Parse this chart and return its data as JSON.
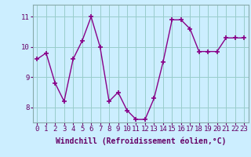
{
  "x": [
    0,
    1,
    2,
    3,
    4,
    5,
    6,
    7,
    8,
    9,
    10,
    11,
    12,
    13,
    14,
    15,
    16,
    17,
    18,
    19,
    20,
    21,
    22,
    23
  ],
  "y": [
    9.6,
    9.8,
    8.8,
    8.2,
    9.6,
    10.2,
    11.0,
    10.0,
    8.2,
    8.5,
    7.9,
    7.6,
    7.6,
    8.3,
    9.5,
    10.9,
    10.9,
    10.6,
    9.85,
    9.85,
    9.85,
    10.3,
    10.3,
    10.3
  ],
  "line_color": "#880088",
  "marker": "+",
  "marker_size": 5,
  "marker_lw": 1.2,
  "bg_color": "#cceeff",
  "grid_color": "#99cccc",
  "xlabel": "Windchill (Refroidissement éolien,°C)",
  "xlabel_fontsize": 7,
  "ylabel_ticks": [
    8,
    9,
    10,
    11
  ],
  "xtick_labels": [
    "0",
    "1",
    "2",
    "3",
    "4",
    "5",
    "6",
    "7",
    "8",
    "9",
    "10",
    "11",
    "12",
    "13",
    "14",
    "15",
    "16",
    "17",
    "18",
    "19",
    "20",
    "21",
    "22",
    "23"
  ],
  "ylim": [
    7.5,
    11.4
  ],
  "xlim": [
    -0.5,
    23.5
  ],
  "tick_fontsize": 6.5,
  "line_width": 1.0
}
